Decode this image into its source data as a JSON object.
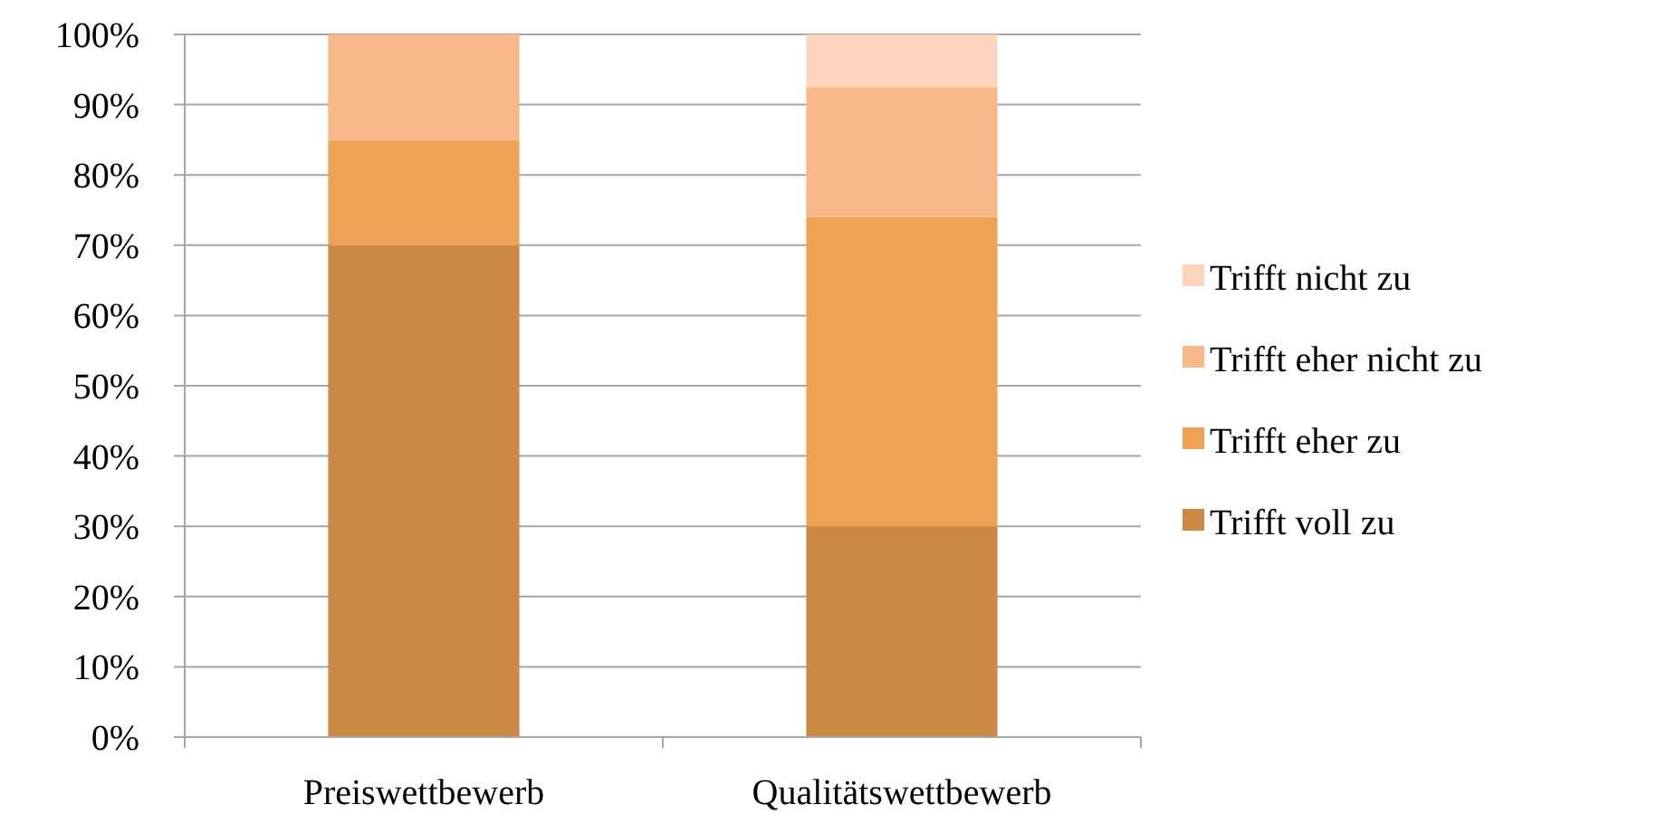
{
  "chart_data": {
    "type": "bar",
    "stacked": true,
    "categories": [
      "Preiswettbewerb",
      "Qualitätswettbewerb"
    ],
    "series": [
      {
        "name": "Trifft voll zu",
        "color": "#cd8a44",
        "values": [
          70,
          30
        ]
      },
      {
        "name": "Trifft eher zu",
        "color": "#eda255",
        "values": [
          15,
          44
        ]
      },
      {
        "name": "Trifft eher nicht zu",
        "color": "#f9b88a",
        "values": [
          15,
          18.5
        ]
      },
      {
        "name": "Trifft nicht zu",
        "color": "#fcd4bc",
        "values": [
          0,
          7.5
        ]
      }
    ],
    "ylim": [
      0,
      100
    ],
    "yticks": [
      {
        "value": 0,
        "label": "0%"
      },
      {
        "value": 10,
        "label": "10%"
      },
      {
        "value": 20,
        "label": "20%"
      },
      {
        "value": 30,
        "label": "30%"
      },
      {
        "value": 40,
        "label": "40%"
      },
      {
        "value": 50,
        "label": "50%"
      },
      {
        "value": 60,
        "label": "60%"
      },
      {
        "value": 70,
        "label": "70%"
      },
      {
        "value": 80,
        "label": "80%"
      },
      {
        "value": 90,
        "label": "90%"
      },
      {
        "value": 100,
        "label": "100%"
      }
    ],
    "grid": "y",
    "legend": "right"
  }
}
